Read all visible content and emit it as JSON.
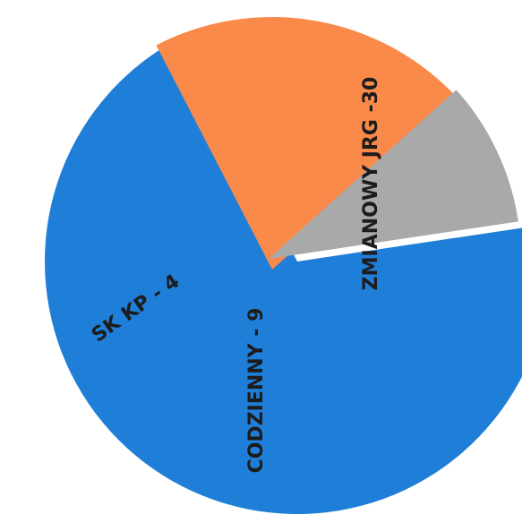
{
  "chart_data": {
    "type": "pie",
    "slices": [
      {
        "label": "ZMIANOWY JRG -30",
        "value": 30,
        "color": "#1f7fd8"
      },
      {
        "label": "CODZIENNY - 9",
        "value": 9,
        "color": "#f98a4a"
      },
      {
        "label": "SK KP - 4",
        "value": 4,
        "color": "#a9a9a9"
      }
    ],
    "exploded": true,
    "legend": "none"
  }
}
